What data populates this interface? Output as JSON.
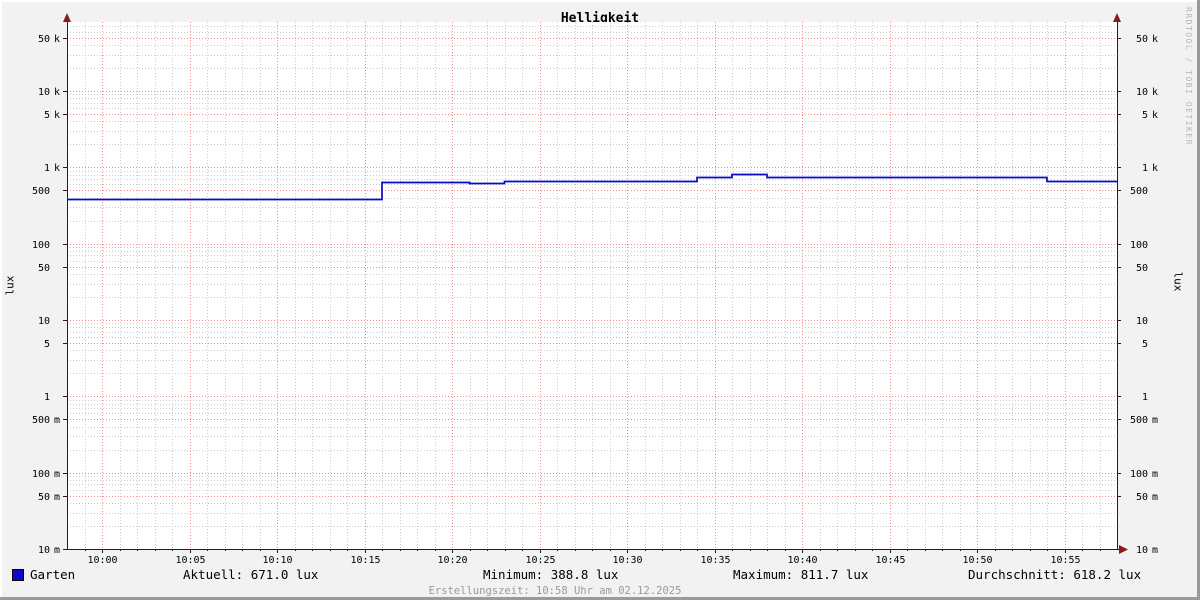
{
  "title": "Helligkeit",
  "watermark": "RRDTOOL / TOBI OETIKER",
  "legend": {
    "label": "Garten",
    "color": "#0a0ac8"
  },
  "stats_row": {
    "current": "Aktuell: 671.0 lux",
    "minimum": "Minimum: 388.8 lux",
    "maximum": "Maximum: 811.7 lux",
    "average": "Durchschnitt: 618.2 lux"
  },
  "footer": {
    "creation": "Erstellungszeit: 10:58 Uhr am 02.12.2025"
  },
  "colors": {
    "background": "#f2f2f2",
    "canvas": "#ffffff",
    "major_grid": "#f28c8c",
    "minor_grid": "#cccccc",
    "axis": "#1f1f1f",
    "arrow": "#8c1a1a",
    "line": "#0a0ac8",
    "tick_label": "#000000"
  },
  "chart_data": {
    "type": "line",
    "title": "Helligkeit",
    "xlabel": "",
    "ylabel": "lux",
    "ylabel_right": "lux",
    "y_scale": "log",
    "ylim": [
      0.01,
      80000
    ],
    "xlim": [
      "09:58",
      "10:58"
    ],
    "grid": true,
    "legend_position": "bottom-left",
    "x_major_ticks": [
      "10:00",
      "10:05",
      "10:10",
      "10:15",
      "10:20",
      "10:25",
      "10:30",
      "10:35",
      "10:40",
      "10:45",
      "10:50",
      "10:55"
    ],
    "x_minor_step_minutes": 1,
    "y_ticks": [
      {
        "value": 50000,
        "num": "50",
        "unit": "k"
      },
      {
        "value": 10000,
        "num": "10",
        "unit": "k"
      },
      {
        "value": 5000,
        "num": "5",
        "unit": "k"
      },
      {
        "value": 1000,
        "num": "1",
        "unit": "k"
      },
      {
        "value": 500,
        "num": "500",
        "unit": ""
      },
      {
        "value": 100,
        "num": "100",
        "unit": ""
      },
      {
        "value": 50,
        "num": "50",
        "unit": ""
      },
      {
        "value": 10,
        "num": "10",
        "unit": ""
      },
      {
        "value": 5,
        "num": "5",
        "unit": ""
      },
      {
        "value": 1,
        "num": "1",
        "unit": ""
      },
      {
        "value": 0.5,
        "num": "500",
        "unit": "m"
      },
      {
        "value": 0.1,
        "num": "100",
        "unit": "m"
      },
      {
        "value": 0.05,
        "num": "50",
        "unit": "m"
      },
      {
        "value": 0.01,
        "num": "10",
        "unit": "m"
      }
    ],
    "series": [
      {
        "name": "Garten",
        "color": "#0a0ac8",
        "unit": "lux",
        "steps": [
          [
            "09:58",
            390
          ],
          [
            "10:16",
            650
          ],
          [
            "10:21",
            620
          ],
          [
            "10:23",
            655
          ],
          [
            "10:34",
            745
          ],
          [
            "10:36",
            812
          ],
          [
            "10:38",
            750
          ],
          [
            "10:54",
            671
          ]
        ],
        "end_time": "10:58"
      }
    ],
    "stats": {
      "current": 671.0,
      "minimum": 388.8,
      "maximum": 811.7,
      "average": 618.2
    }
  }
}
